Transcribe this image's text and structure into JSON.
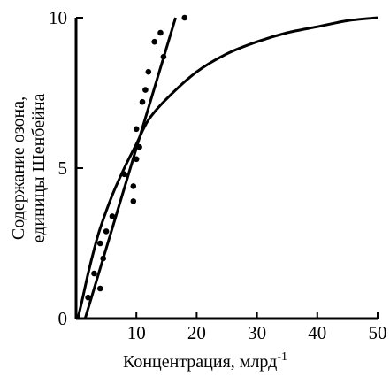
{
  "chart_data": {
    "type": "scatter",
    "xlabel": "Концентрация,  млрд",
    "xlabel_sup": "-1",
    "ylabel_lines": [
      "Содержание   озона,",
      "единицы Шенбейна"
    ],
    "xlim": [
      0,
      50
    ],
    "ylim": [
      0,
      10
    ],
    "x_ticks": [
      0,
      10,
      20,
      30,
      40,
      50
    ],
    "x_tick_labels": [
      "0",
      "10",
      "20",
      "30",
      "40",
      "50"
    ],
    "y_ticks": [
      0,
      5,
      10
    ],
    "y_tick_labels": [
      "0",
      "5",
      "10"
    ],
    "grid": false,
    "colors": {
      "ink": "#000000",
      "background": "#ffffff"
    },
    "series": [
      {
        "kind": "points",
        "points": [
          [
            2,
            0.7
          ],
          [
            3,
            1.5
          ],
          [
            4,
            1.0
          ],
          [
            4,
            2.5
          ],
          [
            4.5,
            2.0
          ],
          [
            5,
            2.9
          ],
          [
            6,
            3.4
          ],
          [
            8,
            4.8
          ],
          [
            9.5,
            4.4
          ],
          [
            9.5,
            3.9
          ],
          [
            10,
            6.3
          ],
          [
            10,
            5.3
          ],
          [
            10.5,
            5.7
          ],
          [
            11,
            7.2
          ],
          [
            11.5,
            7.6
          ],
          [
            12,
            8.2
          ],
          [
            13,
            9.2
          ],
          [
            14,
            9.5
          ],
          [
            14.5,
            8.7
          ],
          [
            18,
            10.0
          ]
        ]
      },
      {
        "kind": "line",
        "points": [
          [
            1.5,
            0
          ],
          [
            16.5,
            10
          ]
        ]
      },
      {
        "kind": "curve",
        "points": [
          [
            0.3,
            0
          ],
          [
            1,
            0.6
          ],
          [
            2,
            1.5
          ],
          [
            3,
            2.3
          ],
          [
            4,
            3.0
          ],
          [
            6,
            4.1
          ],
          [
            8,
            5.0
          ],
          [
            10,
            5.8
          ],
          [
            12,
            6.6
          ],
          [
            15,
            7.3
          ],
          [
            20,
            8.2
          ],
          [
            25,
            8.8
          ],
          [
            30,
            9.2
          ],
          [
            35,
            9.5
          ],
          [
            40,
            9.7
          ],
          [
            45,
            9.9
          ],
          [
            50,
            10.0
          ]
        ]
      }
    ]
  }
}
